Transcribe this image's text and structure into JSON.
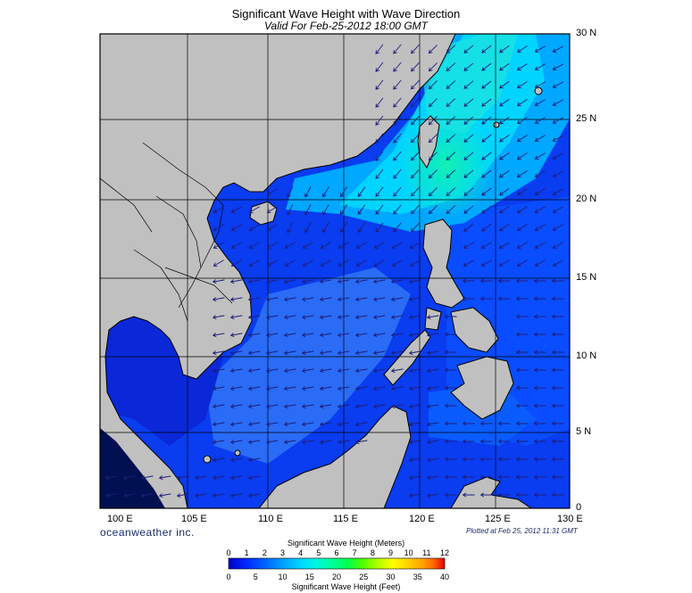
{
  "header": {
    "title": "Significant Wave Height with Wave Direction",
    "valid": "Valid For Feb-25-2012 18:00 GMT"
  },
  "map": {
    "lon_labels": [
      "100 E",
      "105 E",
      "110 E",
      "115 E",
      "120 E",
      "125 E",
      "130 E"
    ],
    "lat_labels": [
      "0",
      "5 N",
      "10 N",
      "15 N",
      "20 N",
      "25 N",
      "30 N"
    ],
    "land_color": "#c0c0c0",
    "coast_color": "#000000",
    "arrow_color": "#1e1e78"
  },
  "footer": {
    "brand": "oceanweather inc.",
    "plotted": "Plotted at Feb 25, 2012 11:31 GMT"
  },
  "colorbar": {
    "title_meters": "Significant Wave Height (Meters)",
    "title_feet": "Significant Wave Height (Feet)",
    "meters_ticks": [
      "0",
      "1",
      "2",
      "3",
      "4",
      "5",
      "6",
      "7",
      "8",
      "9",
      "10",
      "11",
      "12"
    ],
    "feet_ticks": [
      "0",
      "5",
      "10",
      "15",
      "20",
      "25",
      "30",
      "35",
      "40"
    ],
    "colors": [
      "#0000c8",
      "#0028ff",
      "#0064ff",
      "#00a0ff",
      "#00d2ff",
      "#00f5e6",
      "#00ffa0",
      "#00ff50",
      "#50ff00",
      "#b4ff00",
      "#ffff00",
      "#ffd200",
      "#ffa000",
      "#ff6400",
      "#ff2800",
      "#e60000"
    ]
  }
}
